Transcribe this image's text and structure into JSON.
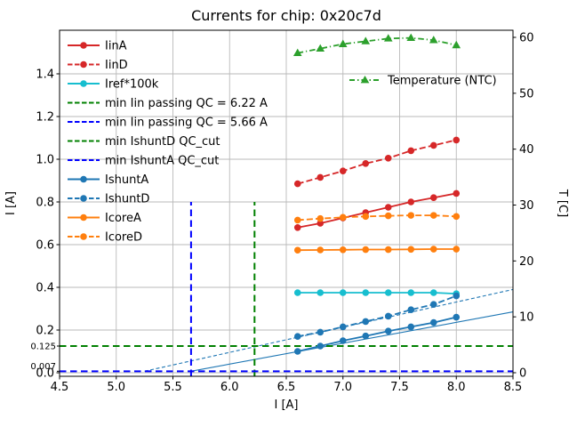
{
  "figure": {
    "title": "Currents for chip: 0x20c7d",
    "background": "#ffffff"
  },
  "axes": {
    "xlabel": "I [A]",
    "ylabel_left": "I [A]",
    "ylabel_right": "T [C]",
    "xlim": [
      4.5,
      8.5
    ],
    "ylim_left": [
      -0.02,
      1.6
    ],
    "ylim_right": [
      -0.6,
      61.3
    ],
    "xticks": [
      "4.5",
      "5.0",
      "5.5",
      "6.0",
      "6.5",
      "7.0",
      "7.5",
      "8.0",
      "8.5"
    ],
    "yticks_left": [
      "0.0",
      "0.2",
      "0.4",
      "0.6",
      "0.8",
      "1.0",
      "1.2",
      "1.4"
    ],
    "yticks_left_extra": [
      "0.125",
      "0.007"
    ],
    "yticks_right": [
      "0",
      "10",
      "20",
      "30",
      "40",
      "50",
      "60"
    ],
    "grid": true,
    "legend_position": "upper left, frameless"
  },
  "chart_data": {
    "type": "line",
    "title": "Currents for chip: 0x20c7d",
    "x": [
      6.6,
      6.8,
      7.0,
      7.2,
      7.4,
      7.6,
      7.8,
      8.0
    ],
    "series": [
      {
        "name": "IinA",
        "axis": "left",
        "color": "#d62728",
        "line": "solid",
        "marker": "circle",
        "values": [
          0.68,
          0.7,
          0.725,
          0.75,
          0.775,
          0.8,
          0.82,
          0.84
        ]
      },
      {
        "name": "IinD",
        "axis": "left",
        "color": "#d62728",
        "line": "dashed",
        "marker": "circle",
        "values": [
          0.885,
          0.915,
          0.945,
          0.98,
          1.005,
          1.04,
          1.065,
          1.09
        ]
      },
      {
        "name": "Iref*100k",
        "axis": "left",
        "color": "#17becf",
        "line": "solid",
        "marker": "circle",
        "values": [
          0.375,
          0.375,
          0.375,
          0.375,
          0.375,
          0.375,
          0.375,
          0.37
        ]
      },
      {
        "name": "IshuntA",
        "axis": "left",
        "color": "#1f77b4",
        "line": "solid",
        "marker": "circle",
        "values": [
          0.1,
          0.125,
          0.15,
          0.172,
          0.195,
          0.215,
          0.235,
          0.26
        ]
      },
      {
        "name": "IshuntD",
        "axis": "left",
        "color": "#1f77b4",
        "line": "dashed",
        "marker": "circle",
        "values": [
          0.17,
          0.19,
          0.215,
          0.24,
          0.265,
          0.295,
          0.32,
          0.36
        ]
      },
      {
        "name": "IcoreA",
        "axis": "left",
        "color": "#ff7f0e",
        "line": "solid",
        "marker": "circle",
        "values": [
          0.574,
          0.575,
          0.576,
          0.577,
          0.577,
          0.578,
          0.579,
          0.579
        ]
      },
      {
        "name": "IcoreD",
        "axis": "left",
        "color": "#ff7f0e",
        "line": "dashed",
        "marker": "circle",
        "values": [
          0.715,
          0.722,
          0.728,
          0.732,
          0.735,
          0.737,
          0.737,
          0.732
        ]
      },
      {
        "name": "Temperature (NTC)",
        "axis": "right",
        "color": "#2ca02c",
        "line": "dashdot",
        "marker": "triangle",
        "values": [
          57.2,
          58.0,
          58.8,
          59.3,
          59.8,
          59.9,
          59.5,
          58.6
        ]
      }
    ],
    "fit_lines": [
      {
        "name": "IshuntD fit",
        "color": "#1f77b4",
        "line": "dashed",
        "x1": 5.25,
        "y1": 0.007,
        "x2": 8.5,
        "y2": 0.39
      },
      {
        "name": "IshuntA fit",
        "color": "#1f77b4",
        "line": "solid",
        "x1": 5.66,
        "y1": 0.007,
        "x2": 8.5,
        "y2": 0.285
      }
    ],
    "reference_lines": [
      {
        "label": "min Iin passing QC = 6.22 A",
        "orientation": "vertical",
        "value": 6.22,
        "span_to": 0.8,
        "color": "#008000",
        "line": "dashed"
      },
      {
        "label": "min Iin passing QC = 5.66 A",
        "orientation": "vertical",
        "value": 5.66,
        "span_to": 0.8,
        "color": "#0000ff",
        "line": "dashed"
      },
      {
        "label": "min IshuntD QC_cut",
        "orientation": "horizontal",
        "value": 0.125,
        "color": "#008000",
        "line": "dashed"
      },
      {
        "label": "min IshuntA QC_cut",
        "orientation": "horizontal",
        "value": 0.007,
        "color": "#0000ff",
        "line": "dashed"
      }
    ]
  },
  "legend_main": {
    "items": [
      {
        "label": "IinA",
        "color": "#d62728",
        "dash": "solid",
        "marker": "circle"
      },
      {
        "label": "IinD",
        "color": "#d62728",
        "dash": "dashed",
        "marker": "circle"
      },
      {
        "label": "Iref*100k",
        "color": "#17becf",
        "dash": "solid",
        "marker": "circle"
      },
      {
        "label": "min Iin passing QC = 6.22 A",
        "color": "#008000",
        "dash": "dashed",
        "marker": null
      },
      {
        "label": "min Iin passing QC = 5.66 A",
        "color": "#0000ff",
        "dash": "dashed",
        "marker": null
      },
      {
        "label": "min IshuntD QC_cut",
        "color": "#008000",
        "dash": "dashed",
        "marker": null
      },
      {
        "label": "min IshuntA QC_cut",
        "color": "#0000ff",
        "dash": "dashed",
        "marker": null
      },
      {
        "label": "IshuntA",
        "color": "#1f77b4",
        "dash": "solid",
        "marker": "circle"
      },
      {
        "label": "IshuntD",
        "color": "#1f77b4",
        "dash": "dashed",
        "marker": "circle"
      },
      {
        "label": "IcoreA",
        "color": "#ff7f0e",
        "dash": "solid",
        "marker": "circle"
      },
      {
        "label": "IcoreD",
        "color": "#ff7f0e",
        "dash": "dashed",
        "marker": "circle"
      }
    ]
  },
  "legend_right": {
    "items": [
      {
        "label": "Temperature (NTC)",
        "color": "#2ca02c",
        "dash": "dashdot",
        "marker": "triangle"
      }
    ]
  },
  "colors": {
    "grid": "#b9b9b9",
    "axis": "#000000",
    "background": "#ffffff",
    "tab_red": "#d62728",
    "tab_blue": "#1f77b4",
    "tab_orange": "#ff7f0e",
    "tab_cyan": "#17becf",
    "tab_green": "#2ca02c",
    "qc_green": "#008000",
    "qc_blue": "#0000ff"
  }
}
